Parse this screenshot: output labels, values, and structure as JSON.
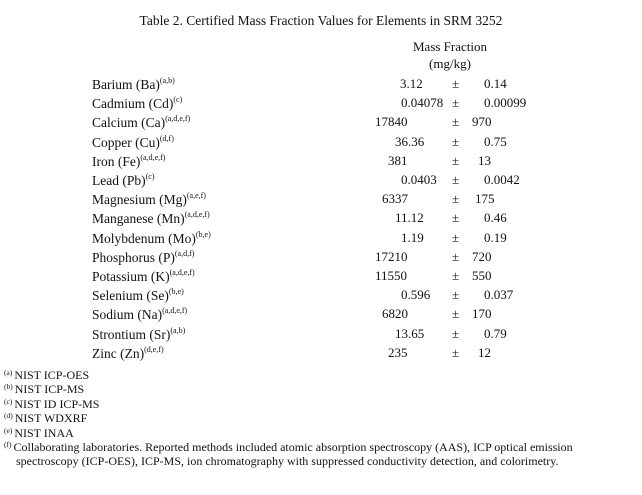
{
  "title": "Table 2.  Certified Mass Fraction Values for Elements in SRM 3252",
  "header": {
    "line1": "Mass Fraction",
    "line2": "(mg/kg)"
  },
  "pm": "±",
  "rows": [
    {
      "name": "Barium (Ba)",
      "sup": "(a,b)",
      "value": "3.12",
      "unc": "0.14"
    },
    {
      "name": "Cadmium (Cd)",
      "sup": "(c)",
      "value": "0.04078",
      "unc": "0.00099"
    },
    {
      "name": "Calcium (Ca)",
      "sup": "(a,d,e,f)",
      "value": "17840",
      "unc": "970"
    },
    {
      "name": "Copper (Cu)",
      "sup": "(d,f)",
      "value": "36.36",
      "unc": "0.75"
    },
    {
      "name": "Iron (Fe)",
      "sup": "(a,d,e,f)",
      "value": "381",
      "unc": "13"
    },
    {
      "name": "Lead (Pb)",
      "sup": "(c)",
      "value": "0.0403",
      "unc": "0.0042"
    },
    {
      "name": "Magnesium (Mg)",
      "sup": "(a,e,f)",
      "value": "6337",
      "unc": "175"
    },
    {
      "name": "Manganese (Mn)",
      "sup": "(a,d,e,f)",
      "value": "11.12",
      "unc": "0.46"
    },
    {
      "name": "Molybdenum (Mo)",
      "sup": "(b,e)",
      "value": "1.19",
      "unc": "0.19"
    },
    {
      "name": "Phosphorus (P)",
      "sup": "(a,d,f)",
      "value": "17210",
      "unc": "720"
    },
    {
      "name": "Potassium (K)",
      "sup": "(a,d,e,f)",
      "value": "11550",
      "unc": "550"
    },
    {
      "name": "Selenium (Se)",
      "sup": "(b,e)",
      "value": "0.596",
      "unc": "0.037"
    },
    {
      "name": "Sodium (Na)",
      "sup": "(a,d,e,f)",
      "value": "6820",
      "unc": "170"
    },
    {
      "name": "Strontium (Sr)",
      "sup": "(a,b)",
      "value": "13.65",
      "unc": "0.79"
    },
    {
      "name": "Zinc (Zn)",
      "sup": "(d,e,f)",
      "value": "235",
      "unc": "12"
    }
  ],
  "footnotes": [
    {
      "mark": "(a)",
      "text": "NIST ICP-OES"
    },
    {
      "mark": "(b)",
      "text": "NIST ICP-MS"
    },
    {
      "mark": "(c)",
      "text": "NIST ID ICP-MS"
    },
    {
      "mark": "(d)",
      "text": "NIST WDXRF"
    },
    {
      "mark": "(e)",
      "text": "NIST INAA"
    },
    {
      "mark": "(f)",
      "text": "Collaborating laboratories.  Reported methods included atomic absorption spectroscopy (AAS), ICP optical emission",
      "cont": "spectroscopy (ICP-OES), ICP-MS, ion chromatography with suppressed conductivity detection, and colorimetry."
    }
  ]
}
